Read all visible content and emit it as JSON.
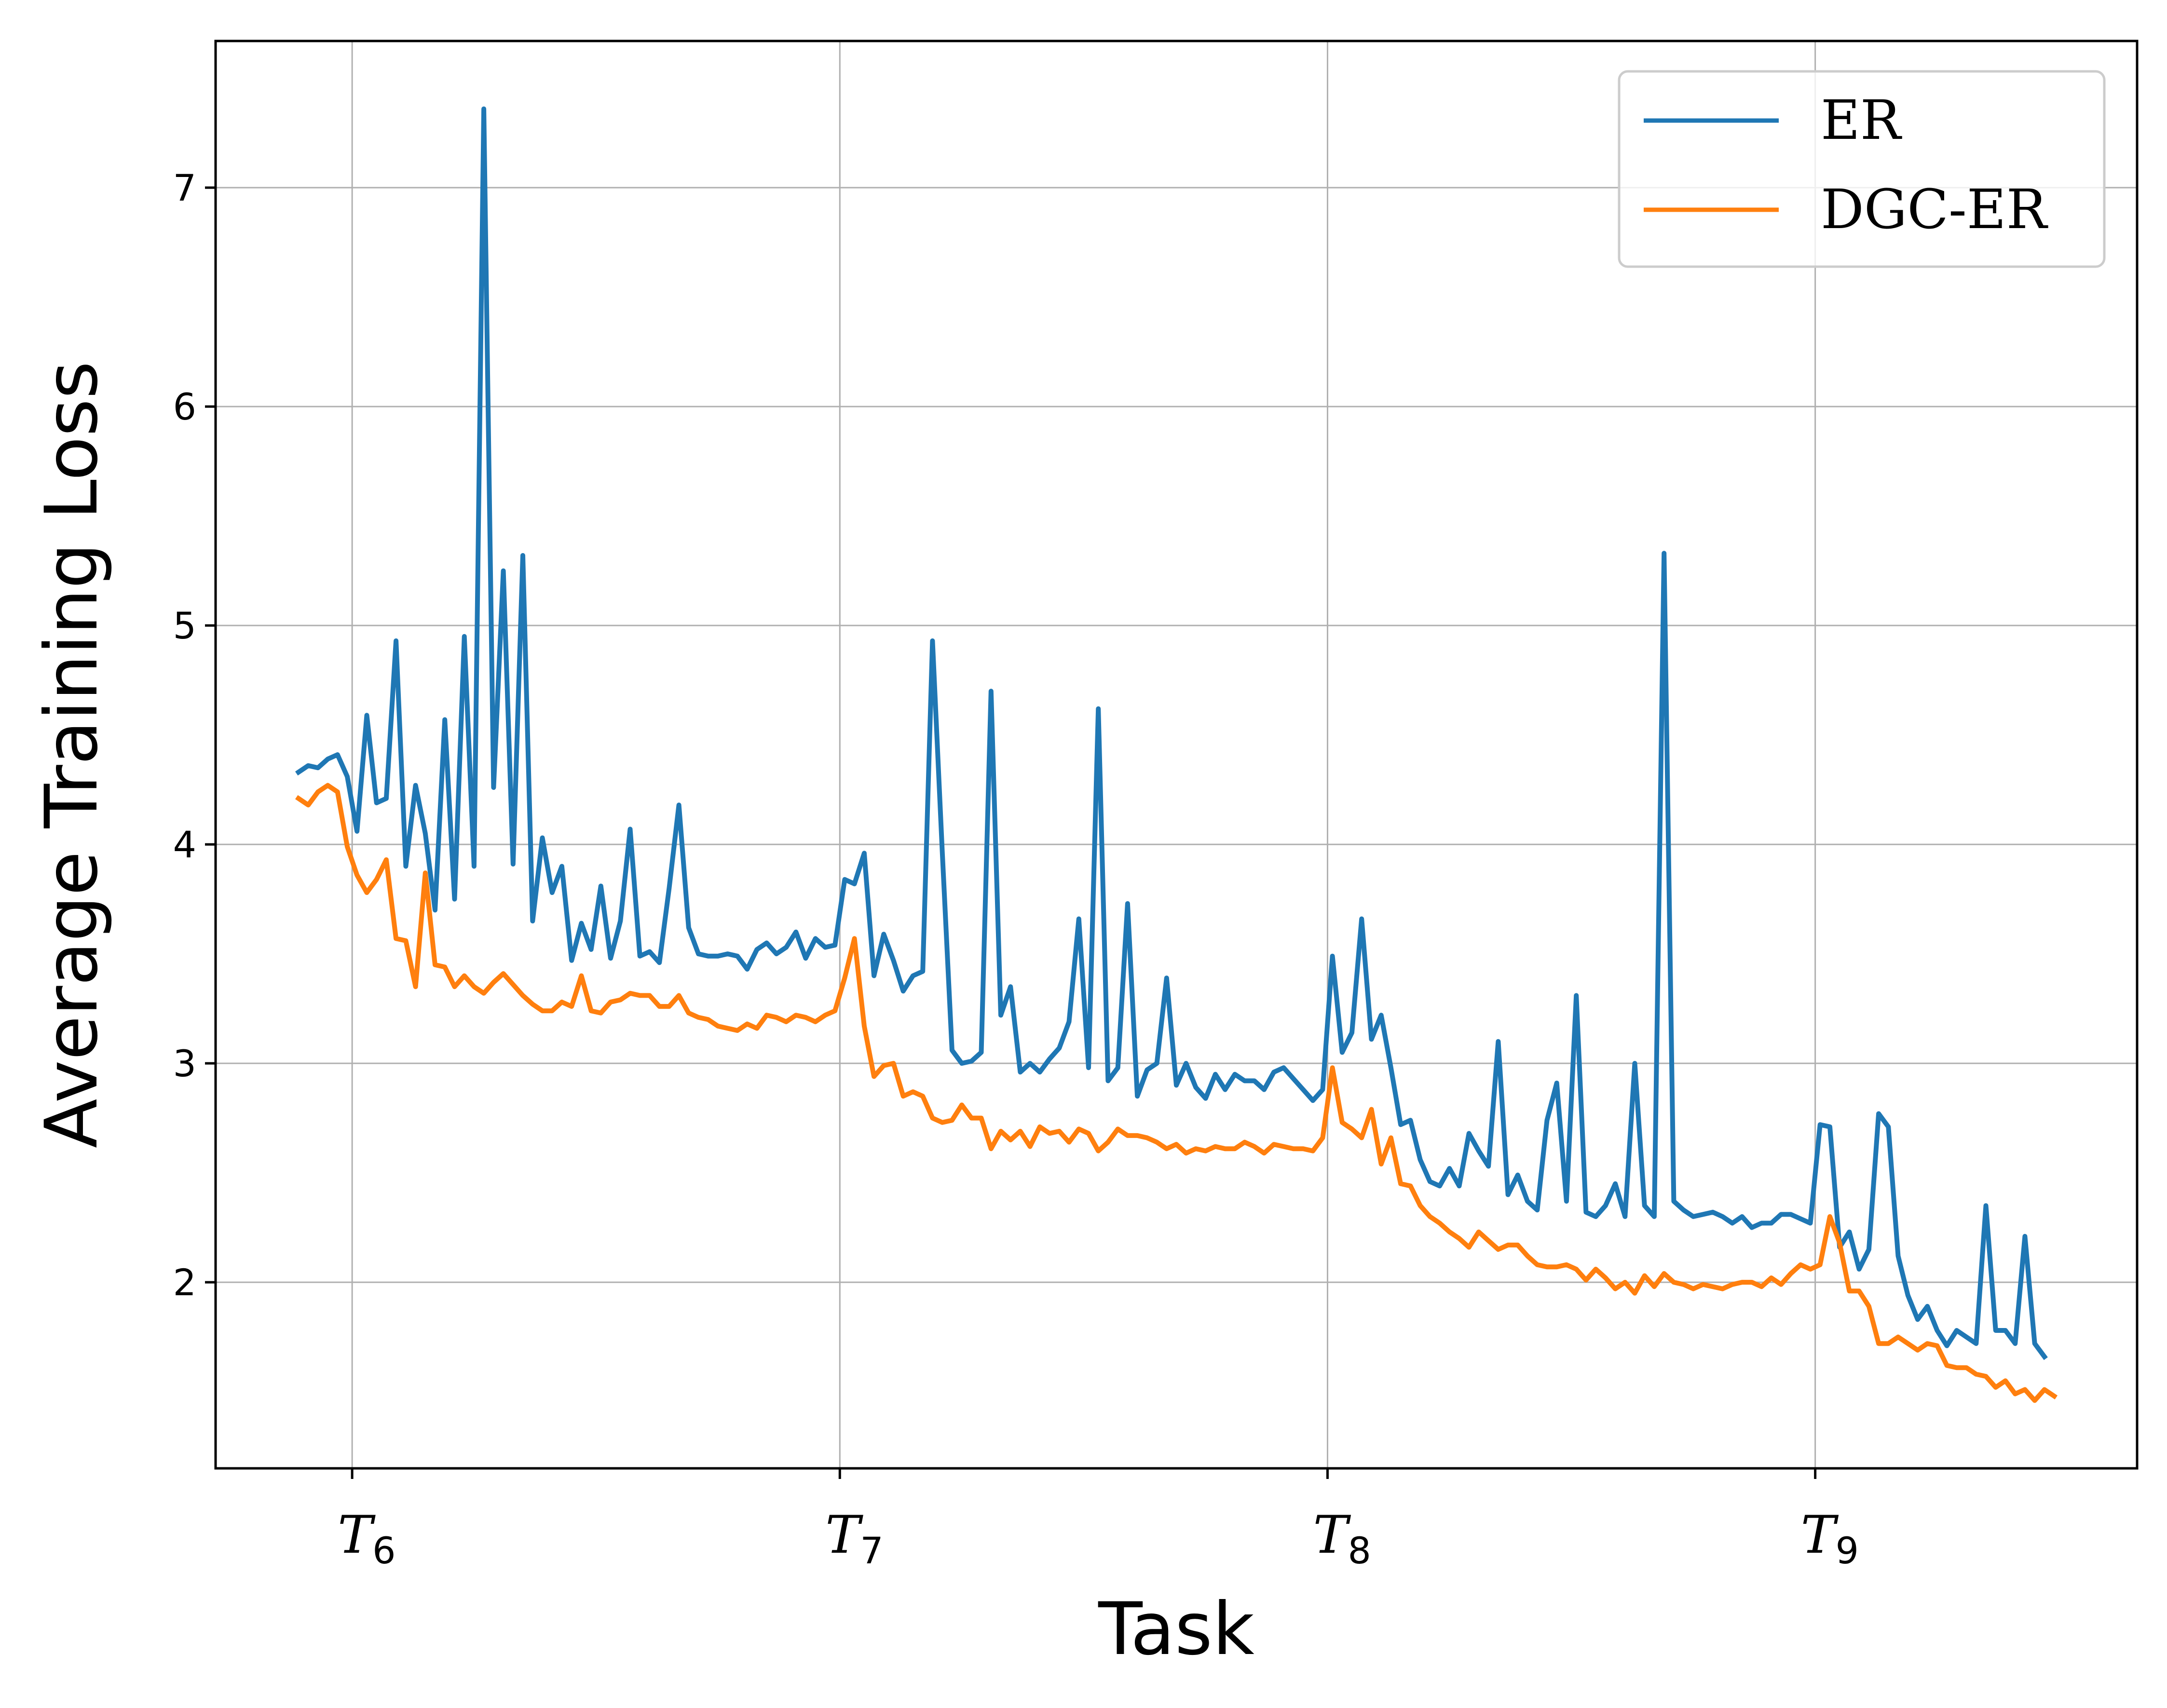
{
  "chart_data": {
    "type": "line",
    "title": "",
    "xlabel": "Task",
    "ylabel": "Average Training Loss",
    "xlim": [
      5.72,
      9.66
    ],
    "ylim": [
      1.15,
      7.67
    ],
    "grid": true,
    "legend_position": "top-right",
    "x_ticks": [
      {
        "value": 6,
        "base": "T",
        "sub": "6"
      },
      {
        "value": 7,
        "base": "T",
        "sub": "7"
      },
      {
        "value": 8,
        "base": "T",
        "sub": "8"
      },
      {
        "value": 9,
        "base": "T",
        "sub": "9"
      }
    ],
    "y_ticks": [
      2,
      3,
      4,
      5,
      6,
      7
    ],
    "x_start": 5.89,
    "x_step": 0.02,
    "series": [
      {
        "name": "ER",
        "color": "#1f77b4",
        "values": [
          4.33,
          4.36,
          4.35,
          4.39,
          4.41,
          4.31,
          4.06,
          4.59,
          4.19,
          4.21,
          4.93,
          3.9,
          4.27,
          4.05,
          3.7,
          4.57,
          3.75,
          4.95,
          3.9,
          7.36,
          4.26,
          5.25,
          3.91,
          5.32,
          3.65,
          4.03,
          3.78,
          3.9,
          3.47,
          3.64,
          3.52,
          3.81,
          3.48,
          3.65,
          4.07,
          3.49,
          3.51,
          3.46,
          3.8,
          4.18,
          3.62,
          3.5,
          3.49,
          3.49,
          3.5,
          3.49,
          3.43,
          3.52,
          3.55,
          3.5,
          3.53,
          3.6,
          3.48,
          3.57,
          3.53,
          3.54,
          3.84,
          3.82,
          3.96,
          3.4,
          3.59,
          3.47,
          3.33,
          3.4,
          3.42,
          4.93,
          3.97,
          3.06,
          3.0,
          3.01,
          3.05,
          4.7,
          3.22,
          3.35,
          2.96,
          3.0,
          2.96,
          3.02,
          3.07,
          3.19,
          3.66,
          2.98,
          4.62,
          2.92,
          2.98,
          3.73,
          2.85,
          2.97,
          3.0,
          3.39,
          2.9,
          3.0,
          2.89,
          2.84,
          2.95,
          2.88,
          2.95,
          2.92,
          2.92,
          2.88,
          2.96,
          2.98,
          2.93,
          2.88,
          2.83,
          2.88,
          3.49,
          3.05,
          3.14,
          3.66,
          3.11,
          3.22,
          2.98,
          2.72,
          2.74,
          2.56,
          2.46,
          2.44,
          2.52,
          2.44,
          2.68,
          2.6,
          2.53,
          3.1,
          2.4,
          2.49,
          2.37,
          2.33,
          2.74,
          2.91,
          2.37,
          3.31,
          2.32,
          2.3,
          2.35,
          2.45,
          2.3,
          3.0,
          2.35,
          2.3,
          5.33,
          2.37,
          2.33,
          2.3,
          2.31,
          2.32,
          2.3,
          2.27,
          2.3,
          2.25,
          2.27,
          2.27,
          2.31,
          2.31,
          2.29,
          2.27,
          2.72,
          2.71,
          2.16,
          2.23,
          2.06,
          2.15,
          2.77,
          2.71,
          2.12,
          1.94,
          1.83,
          1.89,
          1.78,
          1.71,
          1.78,
          1.75,
          1.72,
          2.35,
          1.78,
          1.78,
          1.72,
          2.21,
          1.72,
          1.66
        ]
      },
      {
        "name": "DGC-ER",
        "color": "#ff7f0e",
        "values": [
          4.21,
          4.18,
          4.24,
          4.27,
          4.24,
          3.99,
          3.86,
          3.78,
          3.84,
          3.93,
          3.57,
          3.56,
          3.35,
          3.87,
          3.45,
          3.44,
          3.35,
          3.4,
          3.35,
          3.32,
          3.37,
          3.41,
          3.36,
          3.31,
          3.27,
          3.24,
          3.24,
          3.28,
          3.26,
          3.4,
          3.24,
          3.23,
          3.28,
          3.29,
          3.32,
          3.31,
          3.31,
          3.26,
          3.26,
          3.31,
          3.23,
          3.21,
          3.2,
          3.17,
          3.16,
          3.15,
          3.18,
          3.16,
          3.22,
          3.21,
          3.19,
          3.22,
          3.21,
          3.19,
          3.22,
          3.24,
          3.39,
          3.57,
          3.17,
          2.94,
          2.99,
          3.0,
          2.85,
          2.87,
          2.85,
          2.75,
          2.73,
          2.74,
          2.81,
          2.75,
          2.75,
          2.61,
          2.69,
          2.65,
          2.69,
          2.62,
          2.71,
          2.68,
          2.69,
          2.64,
          2.7,
          2.68,
          2.6,
          2.64,
          2.7,
          2.67,
          2.67,
          2.66,
          2.64,
          2.61,
          2.63,
          2.59,
          2.61,
          2.6,
          2.62,
          2.61,
          2.61,
          2.64,
          2.62,
          2.59,
          2.63,
          2.62,
          2.61,
          2.61,
          2.6,
          2.66,
          2.98,
          2.73,
          2.7,
          2.66,
          2.79,
          2.54,
          2.66,
          2.45,
          2.44,
          2.35,
          2.3,
          2.27,
          2.23,
          2.2,
          2.16,
          2.23,
          2.19,
          2.15,
          2.17,
          2.17,
          2.12,
          2.08,
          2.07,
          2.07,
          2.08,
          2.06,
          2.01,
          2.06,
          2.02,
          1.97,
          2.0,
          1.95,
          2.03,
          1.98,
          2.04,
          2.0,
          1.99,
          1.97,
          1.99,
          1.98,
          1.97,
          1.99,
          2.0,
          2.0,
          1.98,
          2.02,
          1.99,
          2.04,
          2.08,
          2.06,
          2.08,
          2.3,
          2.18,
          1.96,
          1.96,
          1.89,
          1.72,
          1.72,
          1.75,
          1.72,
          1.69,
          1.72,
          1.71,
          1.62,
          1.61,
          1.61,
          1.58,
          1.57,
          1.52,
          1.55,
          1.49,
          1.51,
          1.46,
          1.51,
          1.48
        ]
      }
    ]
  }
}
